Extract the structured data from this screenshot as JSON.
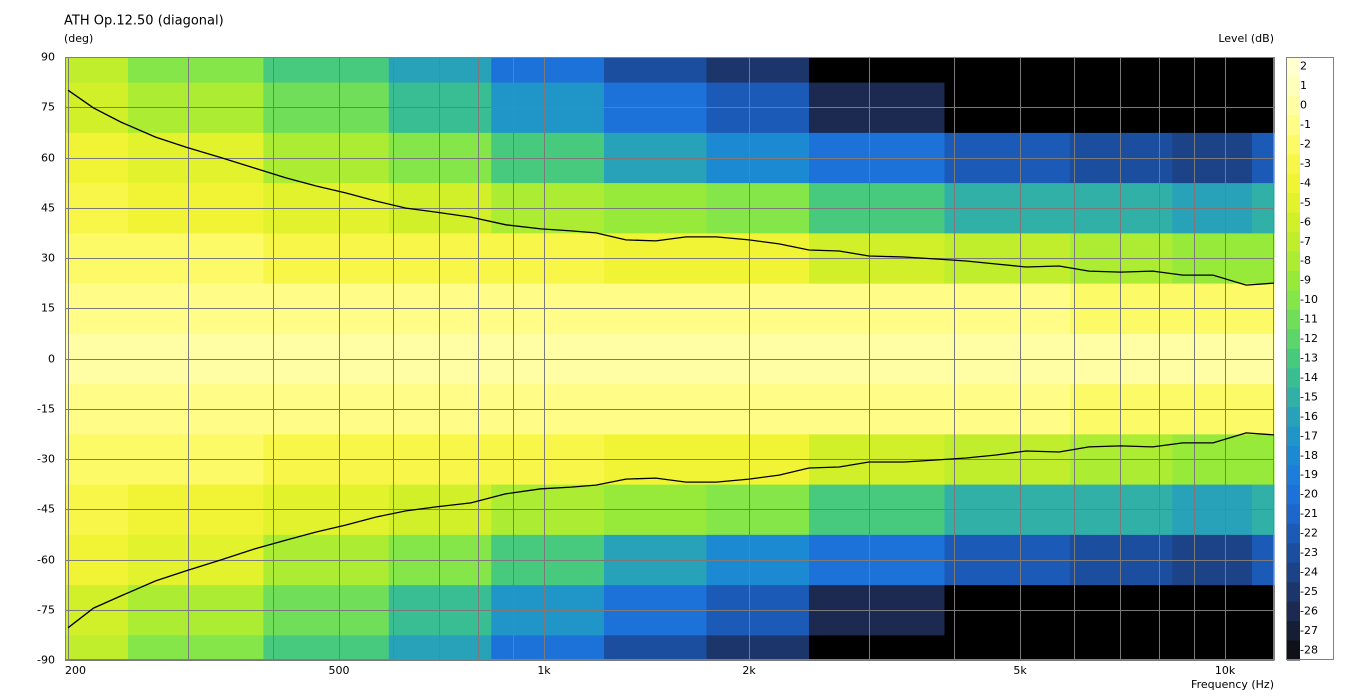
{
  "chart_data": {
    "type": "contour",
    "title": "ATH Op.12.50 (diagonal)",
    "ylabel": "(deg)",
    "clabel": "Level  (dB)",
    "xlabel": "Frequency  (Hz)",
    "xlog": true,
    "xlim": [
      198,
      11800
    ],
    "ylim": [
      -90,
      90
    ],
    "xticks": [
      {
        "value": 200,
        "label": "200"
      },
      {
        "value": 500,
        "label": "500"
      },
      {
        "value": 1000,
        "label": "1k"
      },
      {
        "value": 2000,
        "label": "2k"
      },
      {
        "value": 5000,
        "label": "5k"
      },
      {
        "value": 10000,
        "label": "10k"
      }
    ],
    "xgrid": [
      300,
      400,
      600,
      700,
      800,
      900,
      3000,
      4000,
      6000,
      7000,
      8000,
      9000
    ],
    "yticks": [
      90,
      75,
      60,
      45,
      30,
      15,
      0,
      -15,
      -30,
      -45,
      -60,
      -75,
      -90
    ],
    "grid": true,
    "clim": [
      -28.5,
      2.5
    ],
    "cticks": [
      2,
      1,
      0,
      -1,
      -2,
      -3,
      -4,
      -5,
      -6,
      -7,
      -8,
      -9,
      -10,
      -11,
      -12,
      -13,
      -14,
      -15,
      -16,
      -17,
      -18,
      -19,
      -20,
      -21,
      -22,
      -23,
      -24,
      -25,
      -26,
      -27,
      -28
    ],
    "colors": [
      "#ffffd0",
      "#ffffbc",
      "#fffea4",
      "#fffc88",
      "#fdfa68",
      "#f8f648",
      "#f0f434",
      "#e2f22c",
      "#d2f02a",
      "#c0ee2c",
      "#acec32",
      "#98ea3a",
      "#84e648",
      "#70de58",
      "#5cd66a",
      "#48ca7e",
      "#38be92",
      "#30b0a6",
      "#28a2b8",
      "#2096c8",
      "#1c8ad2",
      "#1c7eda",
      "#1c72d8",
      "#1c66cc",
      "#1c5ab8",
      "#1c4ea0",
      "#1c4288",
      "#1c366c",
      "#1c2a52",
      "#161e36",
      "#0e1218"
    ],
    "below_color": "#000000",
    "freqs": [
      200,
      300,
      500,
      700,
      1000,
      1500,
      2000,
      3000,
      5000,
      7000,
      10000,
      12000
    ],
    "angles": [
      -90,
      -75,
      -60,
      -45,
      -30,
      -15,
      0,
      15,
      30,
      45,
      60,
      75,
      90
    ],
    "z": [
      [
        -7,
        -6,
        -4.5,
        -3.5,
        -2.5,
        -1,
        0,
        -1,
        -2.5,
        -3.5,
        -4.5,
        -6,
        -7
      ],
      [
        -10,
        -8,
        -5.5,
        -4,
        -2.5,
        -1,
        0,
        -1,
        -2.5,
        -4,
        -5.5,
        -8,
        -10
      ],
      [
        -13,
        -11,
        -8,
        -5,
        -3,
        -1,
        0,
        -1,
        -3,
        -5,
        -8,
        -11,
        -13
      ],
      [
        -16,
        -14,
        -10,
        -6.5,
        -3,
        -1,
        0,
        -1,
        -3,
        -6.5,
        -10,
        -14,
        -16
      ],
      [
        -20,
        -17,
        -13,
        -8,
        -3.5,
        -1,
        0,
        -1,
        -3.5,
        -8,
        -13,
        -17,
        -20
      ],
      [
        -23,
        -20,
        -16,
        -9.5,
        -4,
        -1,
        0,
        -1,
        -4,
        -9.5,
        -16,
        -20,
        -23
      ],
      [
        -25,
        -22,
        -18,
        -10.5,
        -4.5,
        -1,
        0,
        -1,
        -4.5,
        -10.5,
        -18,
        -22,
        -25
      ],
      [
        -29,
        -26,
        -20,
        -13,
        -6,
        -1.5,
        0,
        -1.5,
        -6,
        -13,
        -20,
        -26,
        -29
      ],
      [
        -31,
        -29,
        -22,
        -15,
        -7,
        -1.5,
        0,
        -1.5,
        -7,
        -15,
        -22,
        -29,
        -31
      ],
      [
        -32,
        -30,
        -23,
        -15,
        -8,
        -2,
        0,
        -2,
        -8,
        -15,
        -23,
        -30,
        -32
      ],
      [
        -32,
        -30,
        -24,
        -16,
        -9,
        -2,
        0,
        -2,
        -9,
        -16,
        -24,
        -30,
        -32
      ],
      [
        -32,
        -29,
        -22,
        -15,
        -9,
        -2,
        0,
        -2,
        -9,
        -15,
        -22,
        -29,
        -32
      ]
    ],
    "line_x": [
      200,
      218,
      239,
      269,
      298,
      336,
      375,
      418,
      463,
      512,
      567,
      627,
      694,
      781,
      879,
      990,
      1096,
      1192,
      1319,
      1460,
      1617,
      1790,
      2000,
      2214,
      2450,
      2712,
      3001,
      3380,
      3764,
      4167,
      4611,
      5103,
      5705,
      6314,
      7032,
      7834,
      8670,
      9600,
      10740,
      11800
    ],
    "series": [
      {
        "color": "#000000",
        "values": [
          80.1,
          74.8,
          70.6,
          66.1,
          63.1,
          59.9,
          56.9,
          53.9,
          51.5,
          49.4,
          47.0,
          44.9,
          43.7,
          42.2,
          39.9,
          38.7,
          38.1,
          37.5,
          35.4,
          35.1,
          36.3,
          36.3,
          35.4,
          34.2,
          32.4,
          32.1,
          30.6,
          30.3,
          29.7,
          29.1,
          28.2,
          27.3,
          27.6,
          26.1,
          25.8,
          26.1,
          24.9,
          24.9,
          21.9,
          22.5
        ]
      },
      {
        "color": "#000000",
        "values": [
          -80.4,
          -74.5,
          -70.9,
          -66.4,
          -63.4,
          -60.1,
          -56.9,
          -54.2,
          -51.8,
          -49.7,
          -47.3,
          -45.5,
          -44.3,
          -43.1,
          -40.4,
          -38.9,
          -38.4,
          -37.8,
          -36.0,
          -35.7,
          -36.9,
          -36.9,
          -36.0,
          -34.8,
          -32.7,
          -32.4,
          -30.9,
          -30.9,
          -30.3,
          -29.7,
          -28.8,
          -27.6,
          -27.9,
          -26.4,
          -26.1,
          -26.4,
          -25.2,
          -25.2,
          -22.2,
          -22.8
        ]
      }
    ]
  }
}
